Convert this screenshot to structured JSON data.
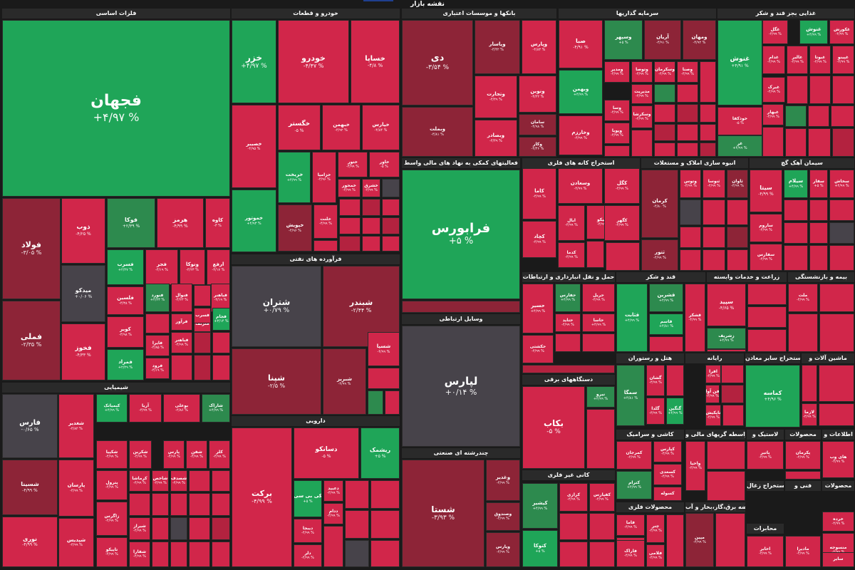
{
  "title": "نقشه بازار",
  "colors": {
    "strong_green": "#1fa558",
    "green": "#2d8a4e",
    "dark_green": "#3c6a4f",
    "red": "#d1264a",
    "mid_red": "#b3223f",
    "dark_red": "#8d2437",
    "maroon": "#6d2632",
    "neutral": "#47434a"
  },
  "sectors": {
    "s01": "فلزات اساسی",
    "s02": "خودرو و قطعات",
    "s03": "بانکها و موسسات اعتباری",
    "s04": "سرمایه گذاریها",
    "s05": "غذایی بجز قند و شکر",
    "s06": "فعالیتهای کمکی به نهاد های مالی واسط",
    "s07": "استخراج کانه های فلزی",
    "s08": "انبوه سازی املاک و مستغلات",
    "s09": "سیمان آهک گچ",
    "s10": "فرآورده های نفتی",
    "s11": "حمل و نقل انبارداری و ارتباطات",
    "s12": "قند و شکر",
    "s13": "زراعت و خدمات وابسته",
    "s14": "بیمه و بازنشستگی",
    "s15": "وسایل ارتباطی",
    "s16": "هتل و رستوران",
    "s17": "رایانه",
    "s18": "استخراج سایر معادن",
    "s19": "ماشین آلات و",
    "s20": "شیمیایی",
    "s21": "دستگاههای برقی",
    "s22": "کاشی و سرامیک",
    "s23": "واسطه گریهای مالی و",
    "s24": "لاستیک و",
    "s25": "محصولات",
    "s26": "اطلاعات و",
    "s27": "دارویی",
    "s28": "چندرشته ای صنعتی",
    "s29": "کانی غیر فلزی",
    "s30": "محصولات فلزی",
    "s31": "عرضه برق،گاز،بخار و آب",
    "s32": "استخراج زغال",
    "s33": "فنی و",
    "s34": "محصولات",
    "s35": "محابرات"
  },
  "tiles": [
    {
      "name": "فجهان",
      "pct": "+۴/۹۷ %"
    },
    {
      "name": "فولاد",
      "pct": "-۳/۰۵ %"
    },
    {
      "name": "فملی",
      "pct": "-۲/۳۵ %"
    },
    {
      "name": "ذوب",
      "pct": "-۴/۲۵ %"
    },
    {
      "name": "فوکا",
      "pct": "+۲/۳۹ %"
    },
    {
      "name": "هرمز",
      "pct": "-۴/۹۹ %"
    },
    {
      "name": "کاوه",
      "pct": "-۳ %"
    },
    {
      "name": "فسرب",
      "pct": "+۲/۲۷ %"
    },
    {
      "name": "فجر",
      "pct": "-۴/۱۹ %"
    },
    {
      "name": "ونوکا",
      "pct": "-۴/۲۳ %"
    },
    {
      "name": "ارفع",
      "pct": "-۴/۱۷ %"
    },
    {
      "name": "میدکو",
      "pct": "+۰/۰۶ %"
    },
    {
      "name": "فلسین",
      "pct": "-۴/۳۸ %"
    },
    {
      "name": "فنورد",
      "pct": "+۴/۲۳ %"
    },
    {
      "name": "فنوال",
      "pct": "-۴/۲۳ %"
    },
    {
      "name": "فباهنر",
      "pct": "-۴/۱۹ %"
    },
    {
      "name": "فخوز",
      "pct": "-۴/۳۳ %"
    },
    {
      "name": "کویر",
      "pct": "-۴/۹۸ %"
    },
    {
      "name": "فلزنف",
      "pct": "-۴/۸۷ %"
    },
    {
      "name": "فرآور",
      "pct": "-۴/۹۹ %"
    },
    {
      "name": "فسرب",
      "pct": "-۴/۹۹ %"
    },
    {
      "name": "فجام",
      "pct": "+۳/۱۴ %"
    },
    {
      "name": "فباهنر",
      "pct": "-۴/۹۹ %"
    },
    {
      "name": "فایرا",
      "pct": "-۴/۸۵ %"
    },
    {
      "name": "فرود",
      "pct": "-۴/۱۹ %"
    },
    {
      "name": "فمراد",
      "pct": "+۲/۲۹ %"
    },
    {
      "name": "خزر",
      "pct": "+۴/۹۷ %"
    },
    {
      "name": "خودرو",
      "pct": "-۴/۴۷ %"
    },
    {
      "name": "خساپا",
      "pct": "-۴/۸ %"
    },
    {
      "name": "خگستر",
      "pct": "-۵ %"
    },
    {
      "name": "خبهمن",
      "pct": "-۴/۹۲ %"
    },
    {
      "name": "خپارس",
      "pct": "-۴/۸۴ %"
    },
    {
      "name": "خصیبر",
      "pct": "-۴/۹۵ %"
    },
    {
      "name": "خریخت",
      "pct": "+۴/۹۹ %"
    },
    {
      "name": "خزامیا",
      "pct": "-۴/۹۶ %"
    },
    {
      "name": "ختور",
      "pct": "-۴/۹۹ %"
    },
    {
      "name": "خاور",
      "pct": "-۵ %"
    },
    {
      "name": "خمحور",
      "pct": "-۴/۹۹ %"
    },
    {
      "name": "خشرق",
      "pct": "-۴/۹۹ %"
    },
    {
      "name": "خموتور",
      "pct": "+۴/۹۳ %"
    },
    {
      "name": "خپویش",
      "pct": "-۴/۹۶ %"
    },
    {
      "name": "خلنت",
      "pct": "-۴/۹۹ %"
    },
    {
      "name": "دی",
      "pct": "-۳/۵۴ %"
    },
    {
      "name": "وپاسار",
      "pct": "-۴/۴۲ %"
    },
    {
      "name": "وپارس",
      "pct": "-۴/۸۳ %"
    },
    {
      "name": "وتجارت",
      "pct": "-۴/۴۹ %"
    },
    {
      "name": "وبملت",
      "pct": "-۴/۸۱ %"
    },
    {
      "name": "ونوین",
      "pct": "-۴/۲۲ %"
    },
    {
      "name": "سامان",
      "pct": "-۴/۹۸ %"
    },
    {
      "name": "وبصادر",
      "pct": "-۴/۴۹ %"
    },
    {
      "name": "وکار",
      "pct": "-۴/۴۶ %"
    },
    {
      "name": "صبا",
      "pct": "-۴/۹۱ %"
    },
    {
      "name": "وسپهر",
      "pct": "+۵ %"
    },
    {
      "name": "آریان",
      "pct": "-۴/۹۱ %"
    },
    {
      "name": "ومهان",
      "pct": "-۴/۹۲ %"
    },
    {
      "name": "وبهمن",
      "pct": "+۴/۹۹ %"
    },
    {
      "name": "ومدیر",
      "pct": "-۴/۹۹ %"
    },
    {
      "name": "وتوصا",
      "pct": "-۴/۹۹ %"
    },
    {
      "name": "وسکرمان",
      "pct": "-۴/۹۹ %"
    },
    {
      "name": "وصنا",
      "pct": "-۴/۹۹ %"
    },
    {
      "name": "وصندوق",
      "pct": "-۴/۸۵ %"
    },
    {
      "name": "مدیریت",
      "pct": "-۴/۹۹ %"
    },
    {
      "name": "وخارزم",
      "pct": "-۴/۹۹ %"
    },
    {
      "name": "وسا",
      "pct": "-۴/۹۹ %"
    },
    {
      "name": "وسکرشا",
      "pct": "-۴/۹۹ %"
    },
    {
      "name": "وپویا",
      "pct": "-۴/۹۹ %"
    },
    {
      "name": "غگل",
      "pct": "-۴/۹۹ %"
    },
    {
      "name": "غنوش",
      "pct": "+۴/۹۹ %"
    },
    {
      "name": "غکورش",
      "pct": "-۴/۹۹ %"
    },
    {
      "name": "غدام",
      "pct": "-۴/۹۹ %"
    },
    {
      "name": "غالبر",
      "pct": "-۴/۹۹ %"
    },
    {
      "name": "غبوتا",
      "pct": "-۴/۹۹ %"
    },
    {
      "name": "غپینو",
      "pct": "-۴/۹۹ %"
    },
    {
      "name": "غنوش",
      "pct": "+۴/۹۱ %"
    },
    {
      "name": "غبرک",
      "pct": "-۴/۹۹ %"
    },
    {
      "name": "خوذکفا",
      "pct": "-۵ %"
    },
    {
      "name": "غبهار",
      "pct": "-۴/۹۹ %"
    },
    {
      "name": "غر",
      "pct": "+۴/۹۹ %"
    },
    {
      "name": "فرابورس",
      "pct": "+۵ %"
    },
    {
      "name": "کگل",
      "pct": "-۴/۹۹ %"
    },
    {
      "name": "کاما",
      "pct": "-۴/۹۹ %"
    },
    {
      "name": "وسعادن",
      "pct": "-۴/۹۹ %"
    },
    {
      "name": "ابال",
      "pct": "-۴/۹۹ %"
    },
    {
      "name": "تامیکو",
      "pct": "-۴/۹۹ %"
    },
    {
      "name": "کگهر",
      "pct": "-۴/۹۹ %"
    },
    {
      "name": "کچاد",
      "pct": "-۴/۹۹ %"
    },
    {
      "name": "کدما",
      "pct": "-۴/۹۹ %"
    },
    {
      "name": "کرمان",
      "pct": "-۴/۸۰ %"
    },
    {
      "name": "وتوس",
      "pct": "-۴/۹۹ %"
    },
    {
      "name": "ثنوسا",
      "pct": "-۴/۹۹ %"
    },
    {
      "name": "ثاوان",
      "pct": "-۴/۹۹ %"
    },
    {
      "name": "ثتور",
      "pct": "-۴/۹۹ %"
    },
    {
      "name": "سیتا",
      "pct": "-۴/۹۹ %"
    },
    {
      "name": "سیلام",
      "pct": "+۴/۹۹ %"
    },
    {
      "name": "سفار",
      "pct": "+۵ %"
    },
    {
      "name": "سخاش",
      "pct": "+۴/۹۹ %"
    },
    {
      "name": "ساروم",
      "pct": "-۴/۹۹ %"
    },
    {
      "name": "سفارس",
      "pct": "-۴/۹۹ %"
    },
    {
      "name": "شتران",
      "pct": "+۰/۷۹ %"
    },
    {
      "name": "شبندر",
      "pct": "-۲/۴۴ %"
    },
    {
      "name": "شپنا",
      "pct": "-۲/۵ %"
    },
    {
      "name": "شسپا",
      "pct": "-۴/۹۹ %"
    },
    {
      "name": "شبریز",
      "pct": "-۴/۹۹ %"
    },
    {
      "name": "حسیر",
      "pct": "+۴/۹۹ %"
    },
    {
      "name": "حفارس",
      "pct": "+۴/۹۹ %"
    },
    {
      "name": "حریل",
      "pct": "-۴/۹۹ %"
    },
    {
      "name": "حتاید",
      "pct": "-۴/۹۹ %"
    },
    {
      "name": "حاسا",
      "pct": "+۴/۹۹ %"
    },
    {
      "name": "حکشتی",
      "pct": "-۴/۹۹ %"
    },
    {
      "name": "قثابت",
      "pct": "+۴/۹۹ %"
    },
    {
      "name": "قشرین",
      "pct": "+۴/۹۹ %"
    },
    {
      "name": "قاسم",
      "pct": "+۴/۸۱ %"
    },
    {
      "name": "قشکر",
      "pct": "-۴/۹۹ %"
    },
    {
      "name": "سپید",
      "pct": "-۴/۶۵ %"
    },
    {
      "name": "زشریف",
      "pct": "+۴/۹۹ %"
    },
    {
      "name": "ملت",
      "pct": "-۴/۹۹ %"
    },
    {
      "name": "لپارس",
      "pct": "+۰/۱۴ %"
    },
    {
      "name": "بکاب",
      "pct": "-۵ %"
    },
    {
      "name": "نیرو",
      "pct": "+۴/۹۹ %"
    },
    {
      "name": "سمگا",
      "pct": "+۴/۸۱ %"
    },
    {
      "name": "گشان",
      "pct": "-۴/۹۹ %"
    },
    {
      "name": "گلدا",
      "pct": "-۴/۹۹ %"
    },
    {
      "name": "گنگین",
      "pct": "+۴/۹۹ %"
    },
    {
      "name": "افرا",
      "pct": "-۴/۹۹ %"
    },
    {
      "name": "فن آوا",
      "pct": "-۴/۹۹ %"
    },
    {
      "name": "تاپکیش",
      "pct": "-۴/۹۹ %"
    },
    {
      "name": "کماسه",
      "pct": "+۴/۹۶ %"
    },
    {
      "name": "لازما",
      "pct": "-۴/۹۹ %"
    },
    {
      "name": "فارس",
      "pct": "-۰/۶۵ %"
    },
    {
      "name": "شغدیر",
      "pct": "-۴/۸۲ %"
    },
    {
      "name": "کیمیاتک",
      "pct": "+۴/۹۹ %"
    },
    {
      "name": "آریا",
      "pct": "-۴/۹۹ %"
    },
    {
      "name": "بوعلی",
      "pct": "-۴/۸۶ %"
    },
    {
      "name": "شاراک",
      "pct": "+۴/۹۹ %"
    },
    {
      "name": "شسینا",
      "pct": "-۴/۹۹ %"
    },
    {
      "name": "پارسان",
      "pct": "-۴/۹۹ %"
    },
    {
      "name": "شکپیا",
      "pct": "-۴/۹۹ %"
    },
    {
      "name": "شکربن",
      "pct": "-۴/۹۹ %"
    },
    {
      "name": "پارس",
      "pct": "-۴/۹۹ %"
    },
    {
      "name": "شفن",
      "pct": "-۴/۹۹ %"
    },
    {
      "name": "کلر",
      "pct": "-۴/۹۹ %"
    },
    {
      "name": "شاخص",
      "pct": "-۴/۹۹ %"
    },
    {
      "name": "کرماشا",
      "pct": "-۴/۹۹ %"
    },
    {
      "name": "شصدف",
      "pct": "-۴/۹۹ %"
    },
    {
      "name": "پترول",
      "pct": "-۴/۹۹ %"
    },
    {
      "name": "نوری",
      "pct": "-۴/۹۹ %"
    },
    {
      "name": "شپدیس",
      "pct": "-۴/۹۹ %"
    },
    {
      "name": "زاگرس",
      "pct": "-۴/۹۹ %"
    },
    {
      "name": "تاپیکو",
      "pct": "-۴/۹۹ %"
    },
    {
      "name": "شیراز",
      "pct": "-۴/۹۹ %"
    },
    {
      "name": "شفارا",
      "pct": "-۴/۹۹ %"
    },
    {
      "name": "برکت",
      "pct": "-۴/۹۹ %"
    },
    {
      "name": "دسانکو",
      "pct": "-۵ %"
    },
    {
      "name": "ریشمک",
      "pct": "+۵ %"
    },
    {
      "name": "کی بی سی",
      "pct": "+۵ %"
    },
    {
      "name": "دعبید",
      "pct": "-۴/۹۹ %"
    },
    {
      "name": "ددام",
      "pct": "-۴/۹۹ %"
    },
    {
      "name": "دیبجا",
      "pct": "-۴/۹۹ %"
    },
    {
      "name": "دلر",
      "pct": "-۴/۹۹ %"
    },
    {
      "name": "شستا",
      "pct": "-۳/۹۳ %"
    },
    {
      "name": "وغدیر",
      "pct": "-۴/۹۹ %"
    },
    {
      "name": "وصندوق",
      "pct": "-۴/۹۹ %"
    },
    {
      "name": "وپارس",
      "pct": "-۴/۹۹ %"
    },
    {
      "name": "کیشیر",
      "pct": "+۴/۹۹ %"
    },
    {
      "name": "کرازی",
      "pct": "-۴/۹۹ %"
    },
    {
      "name": "کفپارس",
      "pct": "-۴/۹۹ %"
    },
    {
      "name": "کتوکا",
      "pct": "+۵ %"
    },
    {
      "name": "کمرجان",
      "pct": "-۴/۹۹ %"
    },
    {
      "name": "کپارس",
      "pct": "-۴/۹۹ %"
    },
    {
      "name": "کسعدی",
      "pct": "-۴/۹۹ %"
    },
    {
      "name": "کترام",
      "pct": "+۴/۹۹ %"
    },
    {
      "name": "کسوله",
      "pct": "-۴/۹۹ %"
    },
    {
      "name": "واحیا",
      "pct": "-۴/۹۹ %"
    },
    {
      "name": "چنر",
      "pct": "-۴/۹۹ %"
    },
    {
      "name": "فاما",
      "pct": "-۴/۹۹ %"
    },
    {
      "name": "فافزا",
      "pct": "-۴/۹۹ %"
    },
    {
      "name": "فلامی",
      "pct": "-۴/۹۹ %"
    },
    {
      "name": "فاراک",
      "pct": "-۴/۹۹ %"
    },
    {
      "name": "مپین",
      "pct": "-۴/۹۹ %"
    },
    {
      "name": "پاتیر",
      "pct": "-۴/۹۹ %"
    },
    {
      "name": "پکرمان",
      "pct": "-۴/۹۹ %"
    },
    {
      "name": "های وب",
      "pct": "-۴/۹۹ %"
    },
    {
      "name": "اخابر",
      "pct": "-۴/۹۹ %"
    },
    {
      "name": "مادیرا",
      "pct": "-۴/۹۹ %"
    },
    {
      "name": "خرده",
      "pct": "-۴/۹۹ %"
    },
    {
      "name": "منسوجه",
      "pct": "-۴/۹۹ %"
    },
    {
      "name": "سایر",
      "pct": "-۴/۹۹ %"
    }
  ]
}
